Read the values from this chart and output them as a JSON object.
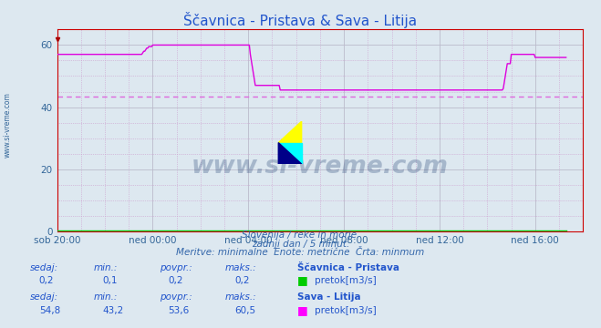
{
  "title": "Ščavnica - Pristava & Sava - Litija",
  "title_color": "#2255cc",
  "bg_color": "#dde8f0",
  "plot_bg_color": "#dde8f0",
  "grid_color_dotted": "#cc99cc",
  "grid_color_solid": "#bbbbcc",
  "xlabel": "",
  "ylabel": "",
  "ylim": [
    0,
    65
  ],
  "yticks": [
    0,
    20,
    40,
    60
  ],
  "xtick_labels": [
    "sob 20:00",
    "ned 00:00",
    "ned 04:00",
    "ned 08:00",
    "ned 12:00",
    "ned 16:00"
  ],
  "xtick_positions": [
    0,
    96,
    192,
    288,
    384,
    480
  ],
  "total_points": 528,
  "avg_line_y": 43.5,
  "avg_line_color": "#dd66dd",
  "line1_color": "#00cc00",
  "line2_color": "#dd00dd",
  "watermark_text": "www.si-vreme.com",
  "watermark_color": "#1a3a6e",
  "sub_text1": "Slovenija / reke in morje.",
  "sub_text2": "zadnji dan / 5 minut.",
  "sub_text3": "Meritve: minimalne  Enote: metrične  Črta: minmum",
  "sub_text_color": "#3366aa",
  "legend1_label": "Ščavnica - Pristava",
  "legend2_label": "Sava - Litija",
  "legend1_color": "#00cc00",
  "legend2_color": "#ff00ff",
  "unit_label": "pretok[m3/s]",
  "table_headers": [
    "sedaj:",
    "min.:",
    "povpr.:",
    "maks.:"
  ],
  "table1_vals": [
    "0,2",
    "0,1",
    "0,2",
    "0,2"
  ],
  "table2_vals": [
    "54,8",
    "43,2",
    "53,6",
    "60,5"
  ],
  "table_color": "#2255cc",
  "sava_data": [
    57,
    57,
    57,
    57,
    57,
    57,
    57,
    57,
    57,
    57,
    57,
    57,
    57,
    57,
    57,
    57,
    57,
    57,
    57,
    57,
    57,
    57,
    57,
    57,
    57,
    57,
    57,
    57,
    57,
    57,
    57,
    57,
    57,
    57,
    57,
    57,
    57,
    57,
    57,
    57,
    57,
    57,
    57,
    57,
    57,
    57,
    57,
    57,
    57,
    57,
    57,
    57,
    57,
    57,
    57,
    57,
    57,
    57,
    57,
    57,
    57,
    57,
    57,
    57,
    57,
    57,
    57,
    57,
    57,
    57,
    57,
    57,
    57,
    57,
    57,
    57,
    57,
    57,
    57,
    57,
    57,
    57,
    57,
    57,
    57,
    57,
    57.5,
    58,
    58,
    58.5,
    59,
    59,
    59.5,
    59.5,
    59.5,
    59.5,
    60,
    60,
    60,
    60,
    60,
    60,
    60,
    60,
    60,
    60,
    60,
    60,
    60,
    60,
    60,
    60,
    60,
    60,
    60,
    60,
    60,
    60,
    60,
    60,
    60,
    60,
    60,
    60,
    60,
    60,
    60,
    60,
    60,
    60,
    60,
    60,
    60,
    60,
    60,
    60,
    60,
    60,
    60,
    60,
    60,
    60,
    60,
    60,
    60,
    60,
    60,
    60,
    60,
    60,
    60,
    60,
    60,
    60,
    60,
    60,
    60,
    60,
    60,
    60,
    60,
    60,
    60,
    60,
    60,
    60,
    60,
    60,
    60,
    60,
    60,
    60,
    60,
    60,
    60,
    60,
    60,
    60,
    60,
    60,
    60,
    60,
    60,
    60,
    60,
    60,
    60,
    60,
    60,
    60,
    60,
    60,
    60,
    60,
    57,
    55,
    53,
    51,
    49,
    47,
    47,
    47,
    47,
    47,
    47,
    47,
    47,
    47,
    47,
    47,
    47,
    47,
    47,
    47,
    47,
    47,
    47,
    47,
    47,
    47,
    47,
    47,
    47,
    47,
    45.5,
    45.5,
    45.5,
    45.5,
    45.5,
    45.5,
    45.5,
    45.5,
    45.5,
    45.5,
    45.5,
    45.5,
    45.5,
    45.5,
    45.5,
    45.5,
    45.5,
    45.5,
    45.5,
    45.5,
    45.5,
    45.5,
    45.5,
    45.5,
    45.5,
    45.5,
    45.5,
    45.5,
    45.5,
    45.5,
    45.5,
    45.5,
    45.5,
    45.5,
    45.5,
    45.5,
    45.5,
    45.5,
    45.5,
    45.5,
    45.5,
    45.5,
    45.5,
    45.5,
    45.5,
    45.5,
    45.5,
    45.5,
    45.5,
    45.5,
    45.5,
    45.5,
    45.5,
    45.5,
    45.5,
    45.5,
    45.5,
    45.5,
    45.5,
    45.5,
    45.5,
    45.5,
    45.5,
    45.5,
    45.5,
    45.5,
    45.5,
    45.5,
    45.5,
    45.5,
    45.5,
    45.5,
    45.5,
    45.5,
    45.5,
    45.5,
    45.5,
    45.5,
    45.5,
    45.5,
    45.5,
    45.5,
    45.5,
    45.5,
    45.5,
    45.5,
    45.5,
    45.5,
    45.5,
    45.5,
    45.5,
    45.5,
    45.5,
    45.5,
    45.5,
    45.5,
    45.5,
    45.5,
    45.5,
    45.5,
    45.5,
    45.5,
    45.5,
    45.5,
    45.5,
    45.5,
    45.5,
    45.5,
    45.5,
    45.5,
    45.5,
    45.5,
    45.5,
    45.5,
    45.5,
    45.5,
    45.5,
    45.5,
    45.5,
    45.5,
    45.5,
    45.5,
    45.5,
    45.5,
    45.5,
    45.5,
    45.5,
    45.5,
    45.5,
    45.5,
    45.5,
    45.5,
    45.5,
    45.5,
    45.5,
    45.5,
    45.5,
    45.5,
    45.5,
    45.5,
    45.5,
    45.5,
    45.5,
    45.5,
    45.5,
    45.5,
    45.5,
    45.5,
    45.5,
    45.5,
    45.5,
    45.5,
    45.5,
    45.5,
    45.5,
    45.5,
    45.5,
    45.5,
    45.5,
    45.5,
    45.5,
    45.5,
    45.5,
    45.5,
    45.5,
    45.5,
    45.5,
    45.5,
    45.5,
    45.5,
    45.5,
    45.5,
    45.5,
    45.5,
    45.5,
    45.5,
    45.5,
    45.5,
    45.5,
    45.5,
    45.5,
    45.5,
    45.5,
    45.5,
    45.5,
    45.5,
    45.5,
    45.5,
    45.5,
    45.5,
    45.5,
    45.5,
    45.5,
    45.5,
    45.5,
    45.5,
    45.5,
    45.5,
    45.5,
    45.5,
    45.5,
    45.5,
    45.5,
    45.5,
    45.5,
    45.5,
    45.5,
    45.5,
    45.5,
    45.5,
    45.5,
    45.5,
    45.5,
    45.5,
    45.5,
    45.5,
    45.5,
    45.5,
    45.5,
    45.5,
    45.5,
    45.5,
    45.5,
    45.5,
    46,
    48,
    50,
    52,
    54,
    54,
    54,
    54,
    57,
    57,
    57,
    57,
    57,
    57,
    57,
    57,
    57,
    57,
    57,
    57,
    57,
    57,
    57,
    57,
    57,
    57,
    57,
    57,
    57,
    57,
    57,
    57,
    56,
    56,
    56,
    56,
    56,
    56,
    56,
    56,
    56,
    56,
    56,
    56,
    56,
    56,
    56,
    56,
    56,
    56,
    56,
    56,
    56,
    56,
    56,
    56,
    56,
    56,
    56,
    56,
    56,
    56,
    56,
    56
  ],
  "scavnica_data_val": 0.2,
  "axis_color": "#cc0000",
  "tick_color": "#336699",
  "tick_fontsize": 7.5,
  "title_fontsize": 11,
  "sidebar_color": "#336699"
}
